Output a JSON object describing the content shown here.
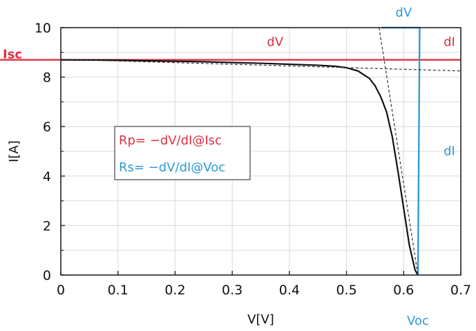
{
  "chart_data": {
    "type": "line",
    "title": "",
    "xlabel": "V[V]",
    "ylabel": "I[A]",
    "xlim": [
      0,
      0.7
    ],
    "ylim": [
      0,
      10
    ],
    "x_ticks": [
      0,
      0.1,
      0.2,
      0.3,
      0.4,
      0.5,
      0.6,
      0.7
    ],
    "x_tick_labels": [
      "0",
      "0.1",
      "0.2",
      "0.3",
      "0.4",
      "0.5",
      "0.6",
      "0.7"
    ],
    "y_ticks": [
      0,
      2,
      4,
      6,
      8,
      10
    ],
    "y_tick_labels": [
      "0",
      "2",
      "4",
      "6",
      "8",
      "10"
    ],
    "grid": true,
    "series": [
      {
        "role": "iv-curve",
        "color": "#111111",
        "x": [
          0,
          0.05,
          0.1,
          0.15,
          0.2,
          0.25,
          0.3,
          0.35,
          0.4,
          0.45,
          0.48,
          0.5,
          0.52,
          0.54,
          0.55,
          0.56,
          0.57,
          0.58,
          0.59,
          0.6,
          0.61,
          0.62,
          0.625
        ],
        "y": [
          8.7,
          8.69,
          8.68,
          8.66,
          8.64,
          8.62,
          8.59,
          8.56,
          8.52,
          8.48,
          8.44,
          8.38,
          8.25,
          7.95,
          7.65,
          7.2,
          6.6,
          5.6,
          4.2,
          2.7,
          1.2,
          0.2,
          0
        ]
      },
      {
        "role": "isc-tangent",
        "color": "#333333",
        "dashed": true,
        "x": [
          0,
          0.7
        ],
        "y": [
          8.72,
          8.25
        ]
      },
      {
        "role": "voc-tangent",
        "color": "#333333",
        "dashed": true,
        "x": [
          0.557,
          0.625
        ],
        "y": [
          10,
          0
        ]
      }
    ],
    "reference_lines": {
      "isc_level": 8.7,
      "voc_value": 0.625,
      "isc_color": "#e0313f",
      "voc_color": "#2e9ad6",
      "voc_triangle_top_x": [
        0.562,
        0.628
      ],
      "voc_triangle_top_y": 10
    },
    "annotations": {
      "isc": "Isc",
      "voc": "Voc",
      "dv_red": "dV",
      "di_red": "dI",
      "dv_blue": "dV",
      "di_blue": "dI"
    },
    "legend": {
      "placement": "center-left",
      "rp": "Rp= −dV/dI@Isc",
      "rs": "Rs= −dV/dI@Voc"
    }
  },
  "colors": {
    "red": "#e0313f",
    "blue": "#2e9ad6",
    "grid": "#d9d9d9",
    "axis": "#222222",
    "legend_border": "#444444"
  }
}
